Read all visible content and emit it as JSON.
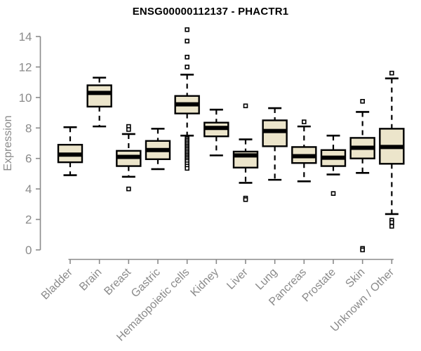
{
  "chart_data": {
    "type": "boxplot",
    "title": "ENSG00000112137 - PHACTR1",
    "xlabel": "",
    "ylabel": "Expression",
    "ylim": [
      0,
      14
    ],
    "yticks": [
      0,
      2,
      4,
      6,
      8,
      10,
      12,
      14
    ],
    "grid": false,
    "legend": "none",
    "box_fill": "#ece5cb",
    "box_stroke": "#000000",
    "median_color": "#000000",
    "outlier_fill": "#ffffff",
    "axis_color": "#8a8a8a",
    "title_color": "#000000",
    "categories": [
      "Bladder",
      "Brain",
      "Breast",
      "Gastric",
      "Hematopoietic cells",
      "Kidney",
      "Liver",
      "Lung",
      "Pancreas",
      "Prostate",
      "Skin",
      "Unknown / Other"
    ],
    "boxes": [
      {
        "category": "Bladder",
        "whisker_low": 4.9,
        "q1": 5.75,
        "median": 6.25,
        "q3": 6.9,
        "whisker_high": 8.05,
        "outliers": []
      },
      {
        "category": "Brain",
        "whisker_low": 8.1,
        "q1": 9.4,
        "median": 10.3,
        "q3": 10.8,
        "whisker_high": 11.3,
        "outliers": []
      },
      {
        "category": "Breast",
        "whisker_low": 4.8,
        "q1": 5.5,
        "median": 6.1,
        "q3": 6.5,
        "whisker_high": 7.6,
        "outliers": [
          8.1,
          7.9,
          4.0
        ]
      },
      {
        "category": "Gastric",
        "whisker_low": 5.3,
        "q1": 5.95,
        "median": 6.55,
        "q3": 7.15,
        "whisker_high": 7.95,
        "outliers": []
      },
      {
        "category": "Hematopoietic cells",
        "whisker_low": 7.5,
        "q1": 8.95,
        "median": 9.55,
        "q3": 10.1,
        "whisker_high": 11.5,
        "outliers": [
          14.45,
          13.7,
          12.65,
          12.0,
          7.3,
          7.2,
          7.1,
          7.0,
          6.9,
          6.8,
          6.7,
          6.6,
          6.5,
          6.4,
          6.3,
          6.2,
          6.1,
          6.0,
          5.9,
          5.8,
          5.65,
          5.5,
          5.35
        ]
      },
      {
        "category": "Kidney",
        "whisker_low": 6.2,
        "q1": 7.45,
        "median": 8.0,
        "q3": 8.35,
        "whisker_high": 9.2,
        "outliers": []
      },
      {
        "category": "Liver",
        "whisker_low": 4.4,
        "q1": 5.4,
        "median": 6.2,
        "q3": 6.45,
        "whisker_high": 7.25,
        "outliers": [
          9.45,
          3.4,
          3.3
        ]
      },
      {
        "category": "Lung",
        "whisker_low": 4.6,
        "q1": 6.8,
        "median": 7.8,
        "q3": 8.5,
        "whisker_high": 9.3,
        "outliers": []
      },
      {
        "category": "Pancreas",
        "whisker_low": 4.5,
        "q1": 5.7,
        "median": 6.15,
        "q3": 6.75,
        "whisker_high": 8.1,
        "outliers": [
          8.4
        ]
      },
      {
        "category": "Prostate",
        "whisker_low": 4.95,
        "q1": 5.5,
        "median": 6.05,
        "q3": 6.55,
        "whisker_high": 7.5,
        "outliers": [
          3.7
        ]
      },
      {
        "category": "Skin",
        "whisker_low": 5.05,
        "q1": 6.0,
        "median": 6.7,
        "q3": 7.35,
        "whisker_high": 9.05,
        "outliers": [
          9.75,
          0.1,
          0.0
        ]
      },
      {
        "category": "Unknown / Other",
        "whisker_low": 2.35,
        "q1": 5.65,
        "median": 6.75,
        "q3": 7.95,
        "whisker_high": 11.25,
        "outliers": [
          11.6,
          1.95,
          1.8,
          1.55
        ]
      }
    ]
  }
}
